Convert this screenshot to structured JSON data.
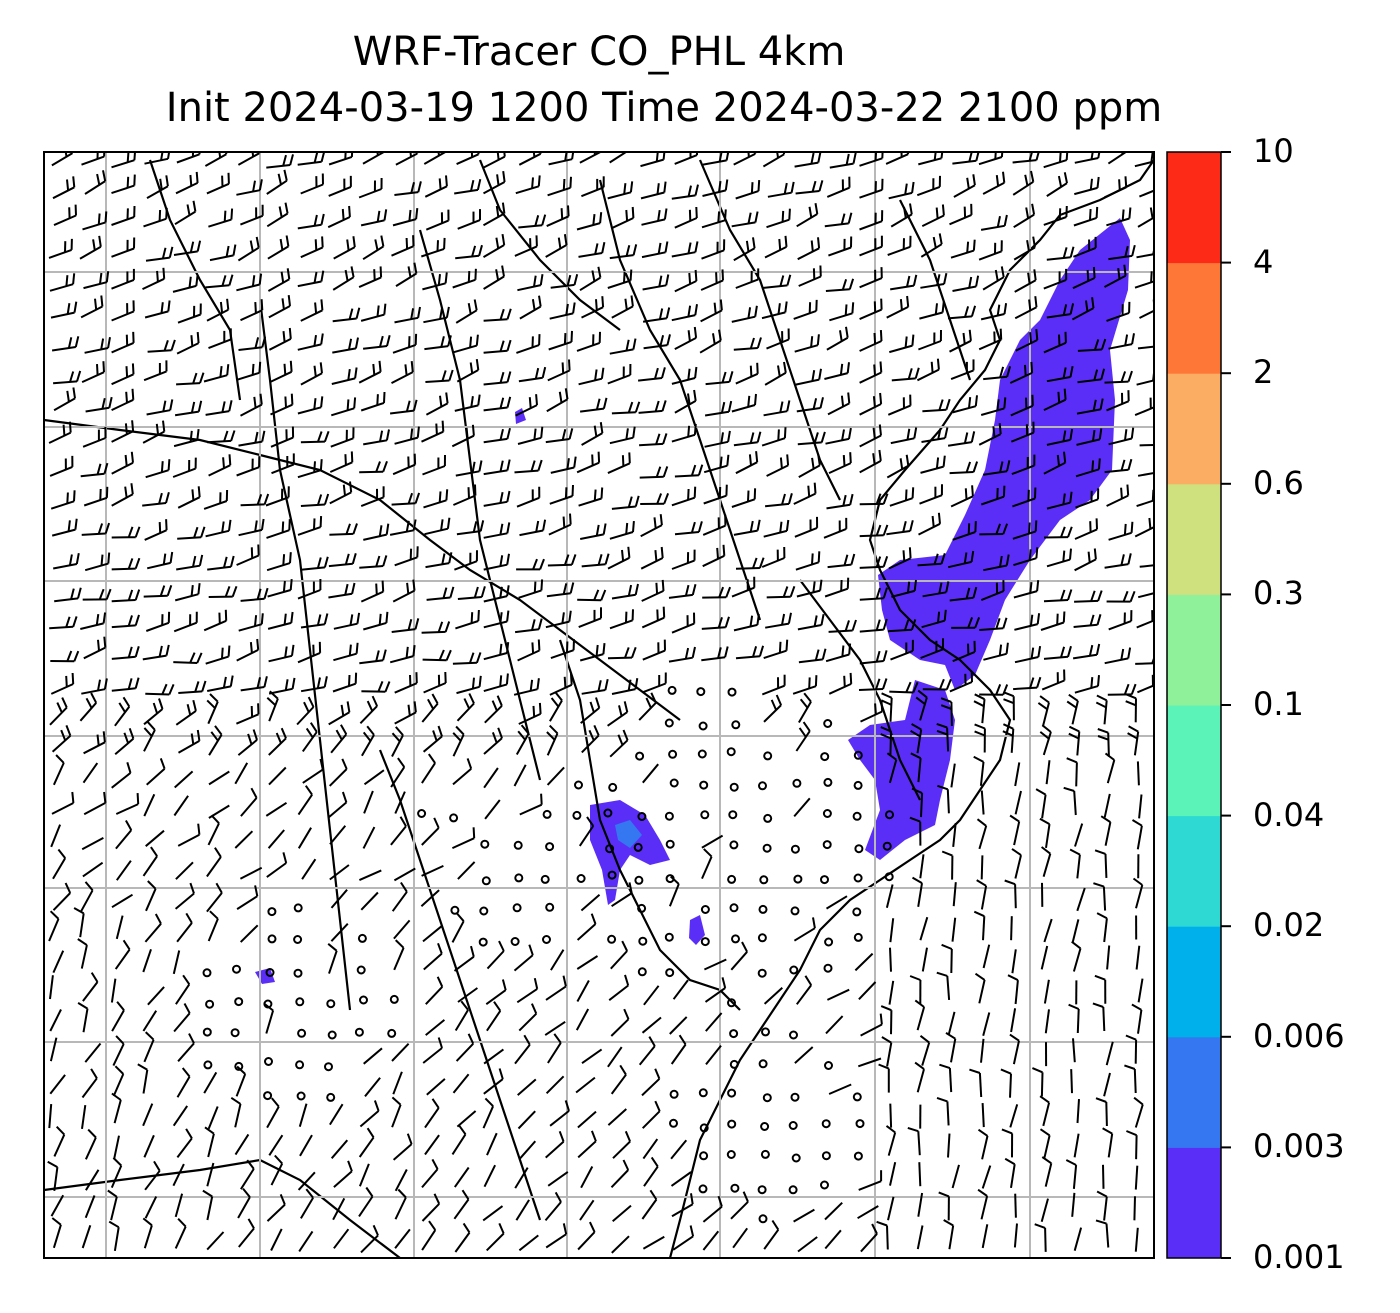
{
  "title": {
    "line1": "WRF-Tracer CO_PHL 4km",
    "line2": "Init 2024-03-19 1200 Time 2024-03-22 2100 ppm"
  },
  "colorbar": {
    "levels": [
      "0.001",
      "0.003",
      "0.006",
      "0.02",
      "0.04",
      "0.1",
      "0.3",
      "0.6",
      "2",
      "4",
      "10"
    ],
    "colors": [
      "#5b2ef7",
      "#3477f0",
      "#00b0ea",
      "#2fd9d3",
      "#5cf3b8",
      "#8ff29a",
      "#cfe07f",
      "#fbae63",
      "#ff7737",
      "#fd2a18"
    ]
  },
  "map": {
    "tracer_color": "#5b2ef7",
    "gridline_color": "#b8b8b8",
    "barb_color": "#000000"
  }
}
